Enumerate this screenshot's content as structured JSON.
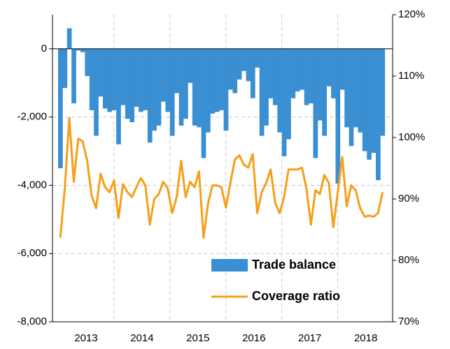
{
  "chart_data": {
    "type": "bar_line",
    "xlim": [
      2012.9,
      2018.98
    ],
    "xticks": [
      {
        "value": 2013.5,
        "label": "2013"
      },
      {
        "value": 2014.5,
        "label": "2014"
      },
      {
        "value": 2015.5,
        "label": "2015"
      },
      {
        "value": 2016.5,
        "label": "2016"
      },
      {
        "value": 2017.5,
        "label": "2017"
      },
      {
        "value": 2018.5,
        "label": "2018"
      }
    ],
    "xgrid": [
      2014,
      2015,
      2016,
      2017,
      2018
    ],
    "x": [
      2013.04,
      2013.12,
      2013.2,
      2013.28,
      2013.36,
      2013.44,
      2013.52,
      2013.6,
      2013.68,
      2013.76,
      2013.84,
      2013.92,
      2014.0,
      2014.08,
      2014.16,
      2014.24,
      2014.32,
      2014.4,
      2014.48,
      2014.56,
      2014.64,
      2014.72,
      2014.8,
      2014.88,
      2014.96,
      2015.04,
      2015.12,
      2015.2,
      2015.28,
      2015.36,
      2015.44,
      2015.52,
      2015.6,
      2015.68,
      2015.76,
      2015.84,
      2015.92,
      2016.0,
      2016.08,
      2016.16,
      2016.24,
      2016.32,
      2016.4,
      2016.48,
      2016.56,
      2016.64,
      2016.72,
      2016.8,
      2016.88,
      2016.96,
      2017.04,
      2017.12,
      2017.2,
      2017.28,
      2017.36,
      2017.44,
      2017.52,
      2017.6,
      2017.68,
      2017.76,
      2017.84,
      2017.92,
      2018.0,
      2018.08,
      2018.16,
      2018.24,
      2018.32,
      2018.4,
      2018.48,
      2018.56,
      2018.64,
      2018.72,
      2018.8
    ],
    "ylim": [
      -8000,
      1000
    ],
    "yticks": [
      {
        "value": 0,
        "label": "0"
      },
      {
        "value": -2000,
        "label": "-2,000"
      },
      {
        "value": -4000,
        "label": "-4,000"
      },
      {
        "value": -6000,
        "label": "-6,000"
      },
      {
        "value": -8000,
        "label": "-8,000"
      }
    ],
    "y2lim": [
      70,
      120
    ],
    "y2ticks": [
      {
        "value": 120,
        "label": "120%"
      },
      {
        "value": 110,
        "label": "110%"
      },
      {
        "value": 100,
        "label": "100%"
      },
      {
        "value": 90,
        "label": "90%"
      },
      {
        "value": 80,
        "label": "80%"
      },
      {
        "value": 70,
        "label": "70%"
      }
    ],
    "grid": true,
    "legend": "lower right",
    "series": [
      {
        "name": "Trade balance",
        "type": "bar",
        "color": "#3a8fd2",
        "values": [
          -3500,
          -1150,
          600,
          -1600,
          -50,
          -100,
          -800,
          -1800,
          -2550,
          -1400,
          -1750,
          -1850,
          -1800,
          -2800,
          -1650,
          -2050,
          -2150,
          -1700,
          -1850,
          -1800,
          -2750,
          -2400,
          -2250,
          -1550,
          -1850,
          -2550,
          -1300,
          -2250,
          -2050,
          -1000,
          -2250,
          -2300,
          -3200,
          -2450,
          -1900,
          -1850,
          -1800,
          -2400,
          -1200,
          -1300,
          -900,
          -650,
          -950,
          -1450,
          -550,
          -2550,
          -2250,
          -1450,
          -1650,
          -2450,
          -3150,
          -2650,
          -1450,
          -1250,
          -1200,
          -1650,
          -1600,
          -3200,
          -2100,
          -2550,
          -1100,
          -1450,
          -3950,
          -1200,
          -2300,
          -2850,
          -2300,
          -2450,
          -3000,
          -3250,
          -3050,
          -3850,
          -2550
        ]
      },
      {
        "name": "Coverage ratio",
        "type": "line",
        "axis": "y2",
        "color": "#f59f1a",
        "values": [
          83.7,
          91.7,
          103.2,
          92.8,
          99.8,
          99.4,
          96.2,
          90.5,
          88.5,
          94.1,
          91.9,
          91.1,
          93.0,
          86.9,
          92.4,
          91.1,
          90.3,
          91.9,
          93.4,
          92.2,
          85.8,
          90.0,
          90.8,
          92.8,
          91.7,
          87.7,
          90.3,
          96.2,
          90.3,
          92.8,
          91.9,
          94.5,
          83.7,
          89.2,
          92.2,
          92.2,
          91.9,
          88.6,
          92.6,
          96.4,
          97.1,
          95.6,
          95.1,
          97.3,
          87.7,
          91.1,
          92.6,
          94.8,
          89.4,
          87.7,
          90.3,
          94.8,
          94.8,
          94.8,
          95.1,
          91.7,
          85.8,
          91.4,
          90.8,
          93.9,
          92.6,
          85.4,
          91.1,
          96.8,
          88.8,
          92.2,
          91.4,
          88.5,
          87.1,
          87.3,
          87.1,
          87.7,
          91.1
        ]
      }
    ]
  }
}
